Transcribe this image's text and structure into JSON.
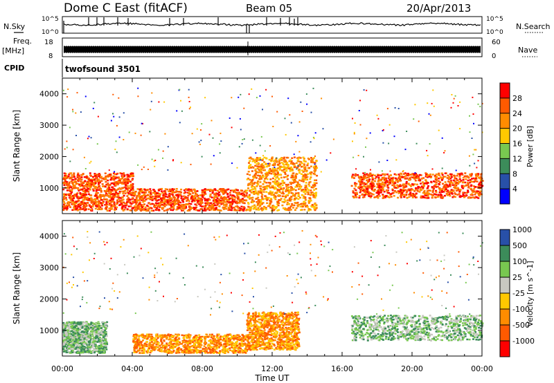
{
  "header": {
    "station": "Dome C East (fitACF)",
    "beam": "Beam 05",
    "date": "20/Apr/2013"
  },
  "top_panels": {
    "nsky_label": "N.Sky",
    "nsearch_label": "N.Search",
    "freq_label_1": "Freq.",
    "freq_label_2": "[MHz]",
    "nave_label": "Nave",
    "cpid_label": "CPID",
    "cpid_value": "twofsound 3501",
    "noise_ticks_left": [
      "10^5",
      "10^0"
    ],
    "noise_ticks_right": [
      "10^5",
      "10^0"
    ],
    "freq_ticks": [
      "18",
      "8"
    ],
    "nave_ticks": [
      "60",
      "0"
    ]
  },
  "colors": {
    "power_scale": [
      "#0000ff",
      "#2850a8",
      "#3c8c5a",
      "#78c850",
      "#ffc800",
      "#ff8c00",
      "#ff5a00",
      "#ff0000"
    ],
    "velocity_scale": [
      "#ff0000",
      "#ff5a00",
      "#ff8c00",
      "#ffc800",
      "#c8c8c0",
      "#78c850",
      "#3c8c5a",
      "#2850a8"
    ]
  },
  "chart_data": [
    {
      "type": "heatmap",
      "name": "power",
      "xlabel": "",
      "ylabel": "Slant Range [km]",
      "x_ticks": [
        "00:00",
        "04:00",
        "08:00",
        "12:00",
        "16:00",
        "20:00",
        "00:00"
      ],
      "xlim_hours": [
        0,
        24
      ],
      "y_ticks": [
        "1000",
        "2000",
        "3000",
        "4000"
      ],
      "ylim_km": [
        180,
        4500
      ],
      "colorbar_label": "Power [dB]",
      "colorbar_ticks": [
        "4",
        "8",
        "12",
        "16",
        "20",
        "24",
        "28"
      ],
      "regions": [
        {
          "start_h": 0.0,
          "end_h": 4.0,
          "range_low_km": 300,
          "range_high_km": 1500,
          "dominant": "28"
        },
        {
          "start_h": 4.0,
          "end_h": 10.5,
          "range_low_km": 300,
          "range_high_km": 1000,
          "dominant": "28"
        },
        {
          "start_h": 10.5,
          "end_h": 14.5,
          "range_low_km": 300,
          "range_high_km": 2000,
          "dominant": "24"
        },
        {
          "start_h": 16.5,
          "end_h": 24.0,
          "range_low_km": 700,
          "range_high_km": 1500,
          "dominant": "28"
        }
      ]
    },
    {
      "type": "heatmap",
      "name": "velocity",
      "xlabel": "Time UT",
      "ylabel": "Slant Range [km]",
      "x_ticks": [
        "00:00",
        "04:00",
        "08:00",
        "12:00",
        "16:00",
        "20:00",
        "00:00"
      ],
      "xlim_hours": [
        0,
        24
      ],
      "y_ticks": [
        "1000",
        "2000",
        "3000",
        "4000"
      ],
      "ylim_km": [
        180,
        4500
      ],
      "colorbar_label": "Velocity [m s^-1]",
      "colorbar_ticks": [
        "-1000",
        "-500",
        "-100",
        "-25",
        "25",
        "100",
        "500",
        "1000"
      ],
      "regions": [
        {
          "start_h": 0.0,
          "end_h": 2.5,
          "range_low_km": 300,
          "range_high_km": 1300,
          "dominant": "100"
        },
        {
          "start_h": 4.0,
          "end_h": 10.5,
          "range_low_km": 300,
          "range_high_km": 900,
          "dominant": "-100"
        },
        {
          "start_h": 10.5,
          "end_h": 13.5,
          "range_low_km": 400,
          "range_high_km": 1600,
          "dominant": "-100"
        },
        {
          "start_h": 16.5,
          "end_h": 24.0,
          "range_low_km": 700,
          "range_high_km": 1500,
          "dominant": "100"
        }
      ]
    }
  ]
}
